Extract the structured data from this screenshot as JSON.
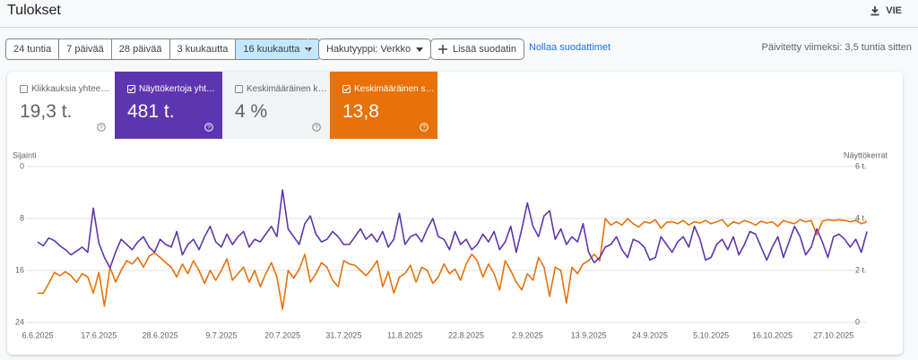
{
  "header": {
    "title": "Tulokset",
    "export": "VIE"
  },
  "toolbar": {
    "date_ranges": [
      {
        "label": "24 tuntia",
        "selected": false
      },
      {
        "label": "7 päivää",
        "selected": false
      },
      {
        "label": "28 päivää",
        "selected": false
      },
      {
        "label": "3 kuukautta",
        "selected": false
      },
      {
        "label": "16 kuukautta",
        "selected": true
      }
    ],
    "search_type": "Hakutyyppi: Verkko",
    "add_filter": "Lisää suodatin",
    "reset_filters": "Nollaa suodattimet",
    "updated": "Päivitetty viimeksi: 3,5 tuntia sitten"
  },
  "cards": [
    {
      "label": "Klikkauksia yhtee…",
      "value": "19,3 t.",
      "selected": false,
      "color": "#ffffff"
    },
    {
      "label": "Näyttökertoja yht…",
      "value": "481 t.",
      "selected": true,
      "color": "#5e35b1"
    },
    {
      "label": "Keskimääräinen k…",
      "value": "4 %",
      "selected": false,
      "color": "#f1f3f4"
    },
    {
      "label": "Keskimääräinen s…",
      "value": "13,8",
      "selected": true,
      "color": "#e8710a"
    }
  ],
  "chart_data": {
    "type": "line",
    "y_label": "Sijainti",
    "y2_label": "Näyttökerrat",
    "categories": [
      "6.6.2025",
      null,
      null,
      null,
      null,
      null,
      null,
      null,
      null,
      null,
      null,
      "17.6.2025",
      null,
      null,
      null,
      null,
      null,
      null,
      null,
      null,
      null,
      null,
      "28.6.2025",
      null,
      null,
      null,
      null,
      null,
      null,
      null,
      null,
      null,
      null,
      "9.7.2025",
      null,
      null,
      null,
      null,
      null,
      null,
      null,
      null,
      null,
      null,
      "20.7.2025",
      null,
      null,
      null,
      null,
      null,
      null,
      null,
      null,
      null,
      null,
      "31.7.2025",
      null,
      null,
      null,
      null,
      null,
      null,
      null,
      null,
      null,
      null,
      "11.8.2025",
      null,
      null,
      null,
      null,
      null,
      null,
      null,
      null,
      null,
      null,
      "22.8.2025",
      null,
      null,
      null,
      null,
      null,
      null,
      null,
      null,
      null,
      null,
      "2.9.2025",
      null,
      null,
      null,
      null,
      null,
      null,
      null,
      null,
      null,
      null,
      "13.9.2025",
      null,
      null,
      null,
      null,
      null,
      null,
      null,
      null,
      null,
      null,
      "24.9.2025",
      null,
      null,
      null,
      null,
      null,
      null,
      null,
      null,
      null,
      null,
      "5.10.2025",
      null,
      null,
      null,
      null,
      null,
      null,
      null,
      null,
      null,
      null,
      "16.10.2025",
      null,
      null,
      null,
      null,
      null,
      null,
      null,
      null,
      null,
      null,
      "27.10.2025",
      null,
      null,
      null,
      null,
      null,
      null
    ],
    "ylim": [
      0,
      24
    ],
    "y_inverted": true,
    "yticks": [
      0,
      8,
      16,
      24
    ],
    "y2lim": [
      0,
      6000
    ],
    "y2ticks": [
      0,
      {
        "value": 2000,
        "label": "2 t."
      },
      {
        "value": 4000,
        "label": "4 t."
      },
      {
        "value": 6000,
        "label": "6 t."
      }
    ],
    "grid": true,
    "series": [
      {
        "color": "#e8710a",
        "values": [
          19.5,
          19.5,
          18,
          16.3,
          16.8,
          16.2,
          16.8,
          17.8,
          16.5,
          17,
          19.5,
          16.3,
          21.5,
          15.5,
          17.8,
          16,
          14.5,
          15,
          14,
          15.5,
          13.8,
          13.3,
          14,
          14.8,
          15.5,
          17,
          15,
          16.5,
          14.5,
          16,
          18,
          16,
          17.5,
          16,
          14.2,
          17.5,
          16.5,
          15.5,
          17.8,
          16,
          18.5,
          16.5,
          14.8,
          17,
          22,
          16,
          17.2,
          15.8,
          13.5,
          17.8,
          16.5,
          14.8,
          15.5,
          17.5,
          18.5,
          14.5,
          15,
          15.2,
          16,
          16.8,
          15.8,
          14.5,
          18.5,
          16.2,
          19.5,
          17,
          16.5,
          15.2,
          17.8,
          15.5,
          16,
          18,
          17,
          15,
          16.5,
          15.8,
          17.5,
          15,
          13.5,
          14.5,
          17,
          15,
          16.5,
          19,
          14.5,
          16,
          17.8,
          19,
          16.5,
          17.5,
          14,
          15.5,
          20,
          15.5,
          16,
          21,
          15.5,
          16.5,
          15,
          14.5,
          13.5,
          14.5,
          8,
          9,
          8.5,
          9,
          8,
          8.8,
          9.3,
          8.5,
          8.7,
          8.2,
          9.5,
          8.6,
          8.5,
          8.8,
          8.3,
          9,
          8.5,
          8.7,
          8.3,
          8.8,
          8.5,
          8.2,
          9.2,
          8.5,
          8.8,
          8.3,
          8.6,
          9,
          8.4,
          8.7,
          8.5,
          9.2,
          8.3,
          8.6,
          8.8,
          8.2,
          8.5,
          8.3,
          10.5,
          8.4,
          8.2,
          8.3,
          8.2,
          8.3,
          8.5,
          8.3,
          8.8,
          8.5
        ]
      },
      {
        "color": "#5e35b1",
        "axis": "y2",
        "values": [
          3100,
          2950,
          3250,
          3150,
          2950,
          2800,
          2600,
          2750,
          2900,
          2700,
          4400,
          3050,
          2500,
          2100,
          2700,
          3200,
          3000,
          2800,
          3100,
          3300,
          2900,
          2700,
          3200,
          3000,
          2900,
          3500,
          2600,
          3000,
          3200,
          2800,
          3300,
          3700,
          3100,
          2900,
          3400,
          3000,
          3300,
          3500,
          2900,
          3200,
          3100,
          3400,
          3700,
          3300,
          5100,
          3600,
          3300,
          3000,
          3800,
          4100,
          3400,
          3100,
          3200,
          3500,
          3300,
          3000,
          3000,
          3300,
          3600,
          3200,
          3400,
          3100,
          3500,
          2900,
          3200,
          4200,
          3000,
          3300,
          3400,
          3100,
          3600,
          4000,
          3300,
          3200,
          2800,
          3500,
          3000,
          3200,
          2800,
          3000,
          3400,
          3100,
          3500,
          2800,
          3100,
          3700,
          2700,
          3600,
          4600,
          3700,
          3300,
          4100,
          4300,
          3200,
          3600,
          3000,
          3300,
          3100,
          3800,
          2700,
          2300,
          2500,
          2900,
          3000,
          3300,
          2800,
          2500,
          3200,
          3100,
          2900,
          2400,
          2500,
          3300,
          3000,
          2700,
          3100,
          3300,
          2900,
          3700,
          3200,
          2400,
          2500,
          3000,
          3200,
          2800,
          3300,
          2600,
          3000,
          3500,
          3400,
          2900,
          2400,
          2900,
          3300,
          2500,
          3100,
          3700,
          3300,
          2600,
          2900,
          3600,
          3100,
          2500,
          3300,
          3400,
          3200,
          2900,
          3200,
          2700,
          3500
        ]
      }
    ]
  }
}
